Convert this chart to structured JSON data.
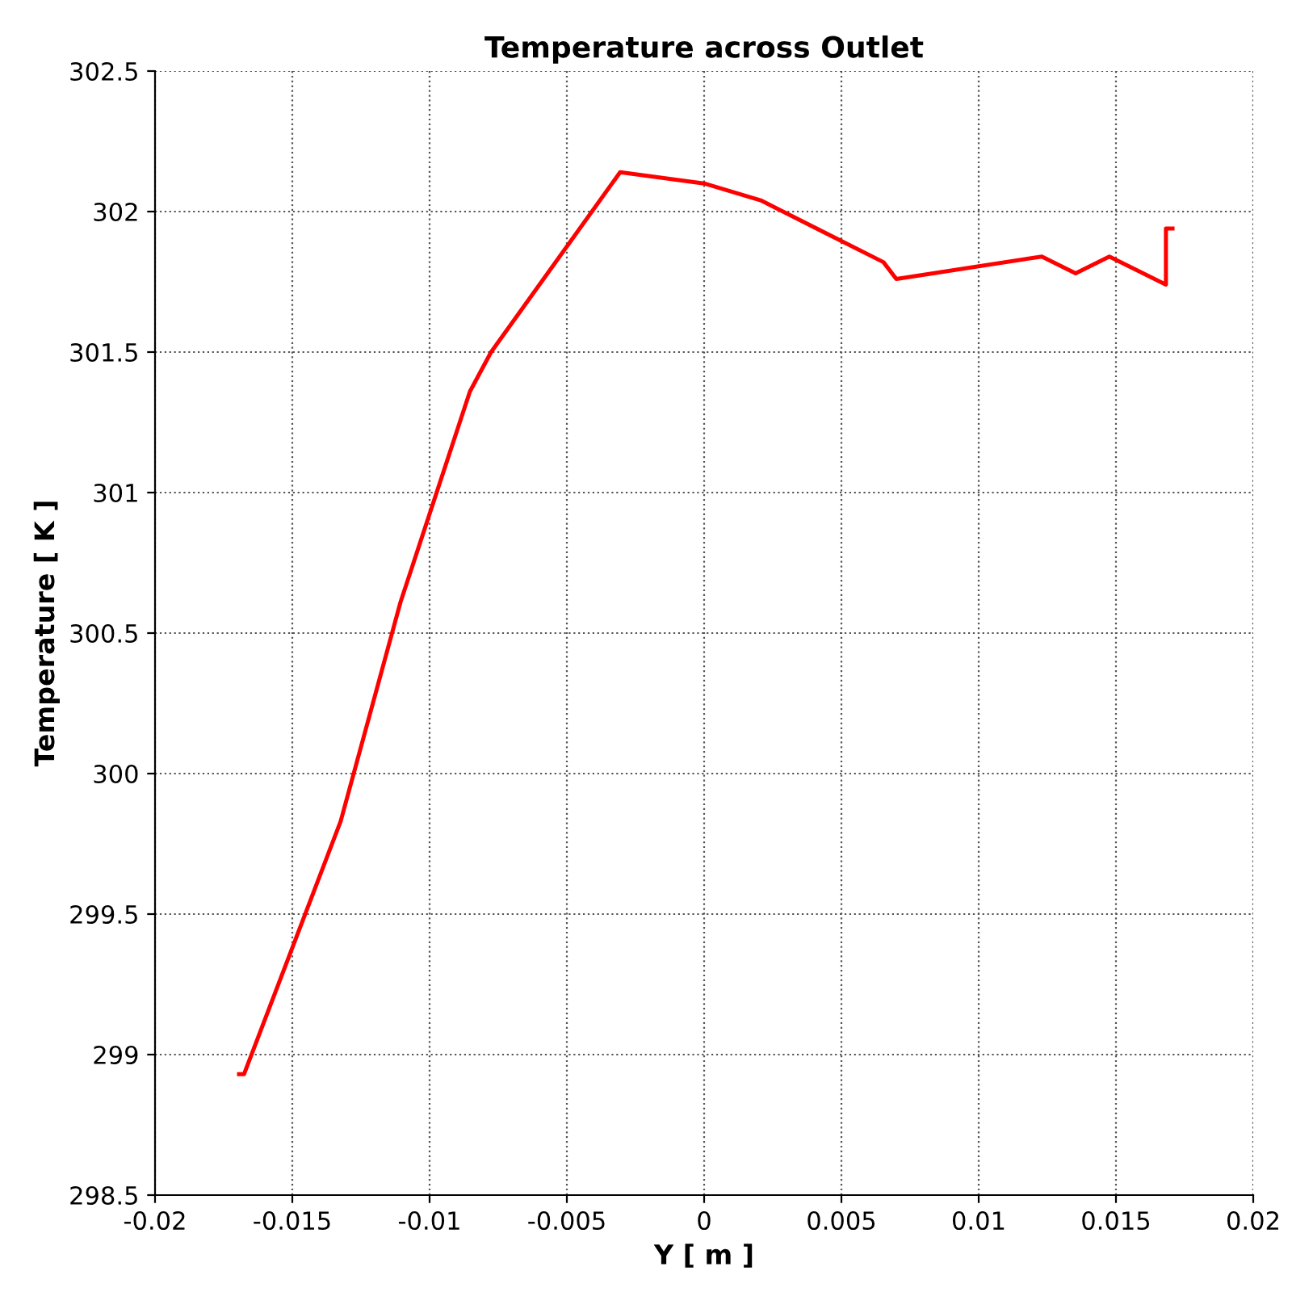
{
  "chart_data": {
    "type": "line",
    "title": "Temperature across Outlet",
    "xlabel": "Y [ m ]",
    "ylabel": "Temperature [ K ]",
    "series": [
      {
        "color": "#ff0000",
        "x": [
          -0.01694,
          -0.01676,
          -0.01324,
          -0.01106,
          -0.00853,
          -0.00776,
          -0.00306,
          0.0,
          0.00206,
          0.00653,
          0.007,
          0.0123,
          0.01353,
          0.01476,
          0.01682,
          0.01682,
          0.01706
        ],
        "values": [
          298.93,
          298.93,
          299.83,
          300.61,
          301.36,
          301.5,
          302.14,
          302.1,
          302.04,
          301.82,
          301.76,
          301.84,
          301.78,
          301.84,
          301.74,
          301.94,
          301.94
        ]
      }
    ],
    "xlim": [
      -0.02,
      0.02
    ],
    "ylim": [
      298.5,
      302.5
    ],
    "xticks": [
      -0.02,
      -0.015,
      -0.01,
      -0.005,
      0,
      0.005,
      0.01,
      0.015,
      0.02
    ],
    "yticks": [
      298.5,
      299,
      299.5,
      300,
      300.5,
      301,
      301.5,
      302,
      302.5
    ],
    "grid": true,
    "line_style": "solid",
    "marker": "none"
  }
}
